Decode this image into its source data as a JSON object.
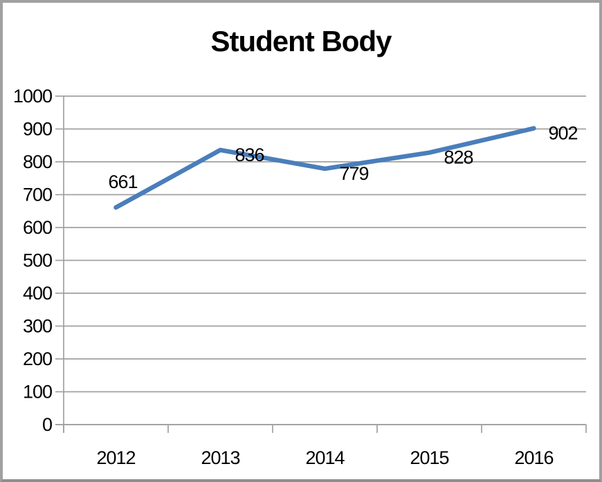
{
  "frame": {
    "background": "#FFFFFF",
    "border_color": "#A0A0A0"
  },
  "chart_data": {
    "type": "line",
    "title": "Student Body",
    "categories": [
      "2012",
      "2013",
      "2014",
      "2015",
      "2016"
    ],
    "series": [
      {
        "name": "Student Body",
        "values": [
          661,
          836,
          779,
          828,
          902
        ]
      }
    ],
    "data_labels_shown": true,
    "label_placements": [
      "above",
      "right",
      "right",
      "right",
      "right"
    ],
    "xlabel": "",
    "ylabel": "",
    "ylim": [
      0,
      1000
    ],
    "ytick_step": 100,
    "yticks": [
      0,
      100,
      200,
      300,
      400,
      500,
      600,
      700,
      800,
      900,
      1000
    ],
    "grid": true,
    "legend": false,
    "colors": {
      "line": "#4A7EBB",
      "grid": "#A0A0A0",
      "axis": "#A0A0A0",
      "text": "#000000",
      "title": "#000000"
    }
  }
}
